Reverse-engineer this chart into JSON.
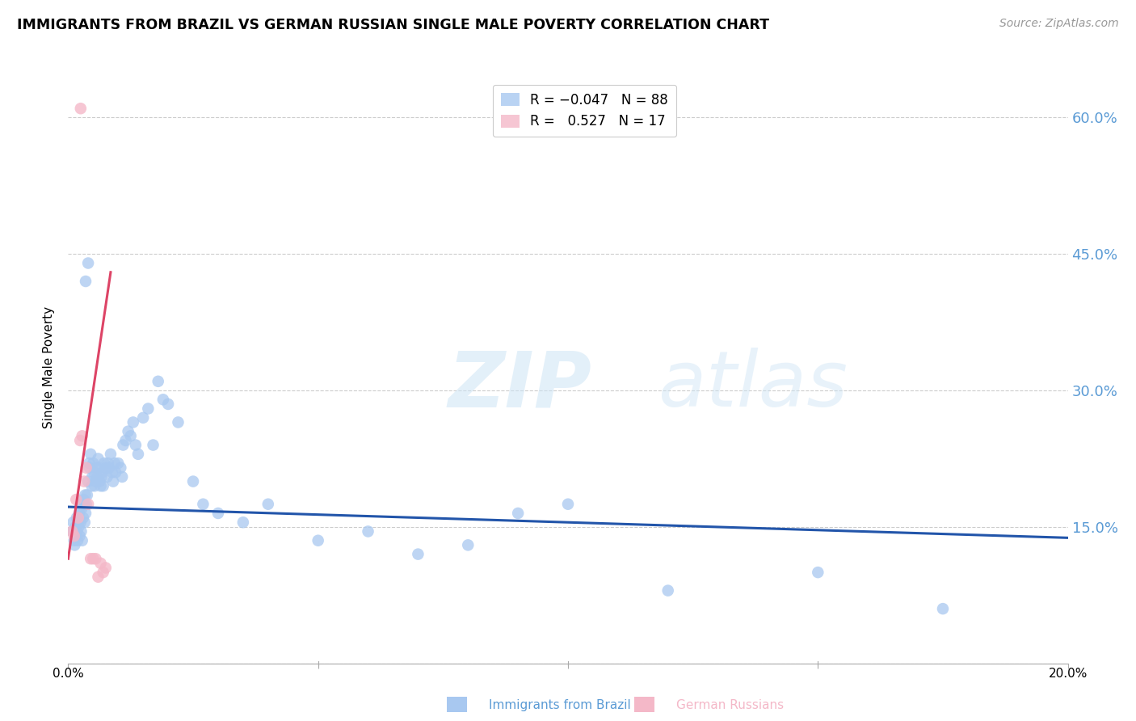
{
  "title": "IMMIGRANTS FROM BRAZIL VS GERMAN RUSSIAN SINGLE MALE POVERTY CORRELATION CHART",
  "source": "Source: ZipAtlas.com",
  "ylabel": "Single Male Poverty",
  "y_ticks": [
    0.0,
    0.15,
    0.3,
    0.45,
    0.6
  ],
  "y_tick_labels": [
    "",
    "15.0%",
    "30.0%",
    "45.0%",
    "60.0%"
  ],
  "xlim": [
    0.0,
    0.2
  ],
  "ylim": [
    0.0,
    0.65
  ],
  "brazil_color": "#a8c8f0",
  "german_color": "#f4b8c8",
  "brazil_line_color": "#2255aa",
  "german_line_color": "#dd4466",
  "axis_color": "#5b9bd5",
  "grid_color": "#cccccc",
  "brazil_x": [
    0.0008,
    0.001,
    0.0012,
    0.0013,
    0.0015,
    0.0016,
    0.0017,
    0.0018,
    0.0019,
    0.002,
    0.0021,
    0.0022,
    0.0023,
    0.0024,
    0.0025,
    0.0026,
    0.0027,
    0.0028,
    0.003,
    0.0031,
    0.0032,
    0.0033,
    0.0034,
    0.0035,
    0.0036,
    0.0038,
    0.004,
    0.0042,
    0.0043,
    0.0045,
    0.0047,
    0.0048,
    0.005,
    0.0052,
    0.0053,
    0.0055,
    0.0057,
    0.0058,
    0.006,
    0.0062,
    0.0063,
    0.0065,
    0.0067,
    0.0068,
    0.007,
    0.0072,
    0.0075,
    0.0078,
    0.008,
    0.0082,
    0.0085,
    0.0088,
    0.009,
    0.0093,
    0.0095,
    0.01,
    0.0105,
    0.0108,
    0.011,
    0.0115,
    0.012,
    0.0125,
    0.013,
    0.0135,
    0.014,
    0.015,
    0.016,
    0.017,
    0.018,
    0.019,
    0.02,
    0.022,
    0.025,
    0.027,
    0.03,
    0.035,
    0.04,
    0.05,
    0.06,
    0.07,
    0.08,
    0.09,
    0.1,
    0.12,
    0.15,
    0.175,
    0.0035,
    0.004
  ],
  "brazil_y": [
    0.145,
    0.155,
    0.135,
    0.13,
    0.15,
    0.14,
    0.16,
    0.145,
    0.135,
    0.155,
    0.15,
    0.165,
    0.14,
    0.175,
    0.155,
    0.145,
    0.17,
    0.135,
    0.16,
    0.18,
    0.175,
    0.155,
    0.185,
    0.165,
    0.175,
    0.185,
    0.2,
    0.22,
    0.215,
    0.23,
    0.195,
    0.205,
    0.22,
    0.21,
    0.195,
    0.2,
    0.215,
    0.205,
    0.225,
    0.215,
    0.2,
    0.195,
    0.205,
    0.21,
    0.195,
    0.22,
    0.215,
    0.205,
    0.22,
    0.215,
    0.23,
    0.21,
    0.2,
    0.22,
    0.21,
    0.22,
    0.215,
    0.205,
    0.24,
    0.245,
    0.255,
    0.25,
    0.265,
    0.24,
    0.23,
    0.27,
    0.28,
    0.24,
    0.31,
    0.29,
    0.285,
    0.265,
    0.2,
    0.175,
    0.165,
    0.155,
    0.175,
    0.135,
    0.145,
    0.12,
    0.13,
    0.165,
    0.175,
    0.08,
    0.1,
    0.06,
    0.42,
    0.44
  ],
  "german_x": [
    0.0008,
    0.0012,
    0.0016,
    0.002,
    0.0024,
    0.0028,
    0.0032,
    0.0036,
    0.004,
    0.0045,
    0.005,
    0.0055,
    0.006,
    0.0065,
    0.007,
    0.0075,
    0.0025
  ],
  "german_y": [
    0.145,
    0.14,
    0.18,
    0.16,
    0.245,
    0.25,
    0.2,
    0.215,
    0.175,
    0.115,
    0.115,
    0.115,
    0.095,
    0.11,
    0.1,
    0.105,
    0.61
  ],
  "brazil_line_x": [
    0.0,
    0.2
  ],
  "brazil_line_y": [
    0.172,
    0.138
  ],
  "german_line_x": [
    0.0,
    0.0085
  ],
  "german_line_y": [
    0.115,
    0.43
  ]
}
